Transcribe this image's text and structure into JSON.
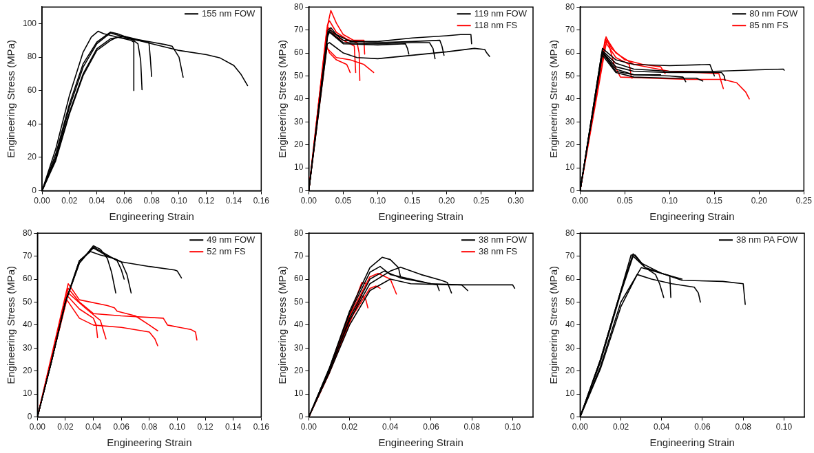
{
  "chart_data": [
    {
      "type": "line",
      "xlabel": "Engineering Strain",
      "ylabel": "Engineering Stress (MPa)",
      "xlim": [
        0,
        0.16
      ],
      "xticks": [
        {
          "value": 0,
          "label": "0.00"
        },
        {
          "value": 0.02,
          "label": "0.02"
        },
        {
          "value": 0.04,
          "label": "0.04"
        },
        {
          "value": 0.06,
          "label": "0.06"
        },
        {
          "value": 0.08,
          "label": "0.08"
        },
        {
          "value": 0.1,
          "label": "0.10"
        },
        {
          "value": 0.12,
          "label": "0.12"
        },
        {
          "value": 0.14,
          "label": "0.14"
        },
        {
          "value": 0.16,
          "label": "0.16"
        }
      ],
      "ylim": [
        0,
        110
      ],
      "yticks": [
        0,
        20,
        40,
        60,
        80,
        100
      ],
      "legend": "top right",
      "marker": "none",
      "line_style": "solid",
      "series": [
        {
          "name": "155 nm FOW",
          "color": "#000000",
          "x": [
            0,
            0.01,
            0.02,
            0.03,
            0.036,
            0.041,
            0.045,
            0.055,
            0.065,
            0.067,
            0.067
          ],
          "values": [
            0,
            25,
            57,
            83,
            92,
            95.5,
            94,
            92,
            90,
            89,
            60
          ]
        },
        {
          "color": "#000000",
          "x": [
            0,
            0.01,
            0.02,
            0.03,
            0.04,
            0.05,
            0.055,
            0.065,
            0.07,
            0.072,
            0.073
          ],
          "values": [
            0,
            22,
            52,
            76,
            89,
            95,
            94,
            91,
            88,
            78,
            60.5
          ]
        },
        {
          "color": "#000000",
          "x": [
            0,
            0.01,
            0.02,
            0.03,
            0.04,
            0.05,
            0.06,
            0.07,
            0.078,
            0.079,
            0.08
          ],
          "values": [
            0,
            20,
            50,
            74,
            88,
            94.5,
            92,
            90,
            89,
            80,
            68.5
          ]
        },
        {
          "color": "#000000",
          "x": [
            0,
            0.01,
            0.02,
            0.03,
            0.04,
            0.05,
            0.06,
            0.07,
            0.08,
            0.09,
            0.095,
            0.1,
            0.103
          ],
          "values": [
            0,
            19,
            47,
            70,
            85,
            91,
            92.5,
            90.5,
            89,
            87.5,
            86.5,
            80,
            68
          ]
        },
        {
          "color": "#000000",
          "x": [
            0,
            0.01,
            0.02,
            0.03,
            0.04,
            0.05,
            0.055,
            0.07,
            0.09,
            0.1,
            0.12,
            0.13,
            0.14,
            0.145,
            0.15
          ],
          "values": [
            0,
            18,
            46,
            69,
            84,
            90,
            92,
            90,
            86,
            84,
            81.5,
            79.5,
            75,
            70,
            63
          ]
        }
      ]
    },
    {
      "type": "line",
      "xlabel": "Engineering Strain",
      "ylabel": "Engineering Stress (MPa)",
      "xlim": [
        0,
        0.325
      ],
      "xticks": [
        {
          "value": 0,
          "label": "0.00"
        },
        {
          "value": 0.05,
          "label": "0.05"
        },
        {
          "value": 0.1,
          "label": "0.10"
        },
        {
          "value": 0.15,
          "label": "0.15"
        },
        {
          "value": 0.2,
          "label": "0.20"
        },
        {
          "value": 0.25,
          "label": "0.25"
        },
        {
          "value": 0.3,
          "label": "0.30"
        }
      ],
      "ylim": [
        0,
        80
      ],
      "yticks": [
        0,
        10,
        20,
        30,
        40,
        50,
        60,
        70,
        80
      ],
      "legend": "top right",
      "marker": "none",
      "line_style": "solid",
      "series": [
        {
          "name": "119 nm FOW",
          "color": "#000000",
          "x": [
            0,
            0.028,
            0.032,
            0.04,
            0.06,
            0.1,
            0.15,
            0.2,
            0.22,
            0.235,
            0.236
          ],
          "values": [
            0,
            70,
            71,
            68,
            65,
            65,
            66.5,
            67.5,
            68,
            68,
            64
          ]
        },
        {
          "color": "#000000",
          "x": [
            0,
            0.028,
            0.031,
            0.05,
            0.1,
            0.15,
            0.19,
            0.193,
            0.196
          ],
          "values": [
            0,
            69,
            70,
            65.5,
            64.5,
            65,
            65.5,
            63,
            59
          ]
        },
        {
          "color": "#000000",
          "x": [
            0,
            0.027,
            0.03,
            0.05,
            0.1,
            0.15,
            0.175,
            0.18,
            0.183
          ],
          "values": [
            0,
            68,
            69.5,
            64.5,
            64,
            64.5,
            64.5,
            62,
            57.5
          ]
        },
        {
          "color": "#000000",
          "x": [
            0,
            0.027,
            0.03,
            0.05,
            0.1,
            0.14,
            0.143,
            0.145
          ],
          "values": [
            0,
            67,
            69,
            64,
            63.5,
            64,
            62,
            59.5
          ]
        },
        {
          "color": "#000000",
          "x": [
            0,
            0.027,
            0.03,
            0.05,
            0.07,
            0.1,
            0.15,
            0.2,
            0.24,
            0.255,
            0.258,
            0.262
          ],
          "values": [
            0,
            64,
            64.5,
            60,
            58,
            57.5,
            59,
            60.5,
            62,
            61.5,
            60,
            58.5
          ]
        },
        {
          "name": "118 nm FS",
          "color": "#ff0000",
          "x": [
            0,
            0.028,
            0.032,
            0.04,
            0.05,
            0.065,
            0.08,
            0.081
          ],
          "values": [
            0,
            73,
            78.5,
            73,
            68,
            65.5,
            65.5,
            59.5
          ]
        },
        {
          "color": "#ff0000",
          "x": [
            0,
            0.027,
            0.03,
            0.04,
            0.055,
            0.07,
            0.073,
            0.074
          ],
          "values": [
            0,
            72,
            74,
            69,
            66,
            64.5,
            60,
            48
          ]
        },
        {
          "color": "#ff0000",
          "x": [
            0,
            0.026,
            0.029,
            0.04,
            0.06,
            0.066,
            0.068
          ],
          "values": [
            0,
            70,
            71,
            67,
            64,
            63,
            51.5
          ]
        },
        {
          "color": "#ff0000",
          "x": [
            0,
            0.026,
            0.03,
            0.04,
            0.06,
            0.08,
            0.094
          ],
          "values": [
            0,
            62,
            61,
            58,
            57,
            55,
            51.5
          ]
        },
        {
          "color": "#ff0000",
          "x": [
            0,
            0.026,
            0.03,
            0.04,
            0.055,
            0.058,
            0.06
          ],
          "values": [
            0,
            63,
            60,
            57,
            55,
            53,
            51.5
          ]
        }
      ]
    },
    {
      "type": "line",
      "xlabel": "Engineering Strain",
      "ylabel": "Engineering Stress (MPa)",
      "xlim": [
        0,
        0.25
      ],
      "xticks": [
        {
          "value": 0,
          "label": "0.00"
        },
        {
          "value": 0.05,
          "label": "0.05"
        },
        {
          "value": 0.1,
          "label": "0.10"
        },
        {
          "value": 0.15,
          "label": "0.15"
        },
        {
          "value": 0.2,
          "label": "0.20"
        },
        {
          "value": 0.25,
          "label": "0.25"
        }
      ],
      "ylim": [
        0,
        80
      ],
      "yticks": [
        0,
        10,
        20,
        30,
        40,
        50,
        60,
        70,
        80
      ],
      "legend": "top right",
      "marker": "none",
      "line_style": "solid",
      "series": [
        {
          "name": "80 nm FOW",
          "color": "#000000",
          "x": [
            0,
            0.025,
            0.04,
            0.06,
            0.1,
            0.145,
            0.148,
            0.15
          ],
          "values": [
            0,
            62,
            57,
            55,
            54.5,
            55,
            52,
            50
          ]
        },
        {
          "color": "#000000",
          "x": [
            0,
            0.025,
            0.04,
            0.06,
            0.1,
            0.15,
            0.2,
            0.227,
            0.228
          ],
          "values": [
            0,
            61,
            55.5,
            53,
            52,
            52,
            52.7,
            53,
            52.5
          ]
        },
        {
          "color": "#000000",
          "x": [
            0,
            0.025,
            0.04,
            0.06,
            0.1,
            0.158,
            0.161,
            0.162
          ],
          "values": [
            0,
            60.5,
            54,
            52,
            51.5,
            51.5,
            50,
            48
          ]
        },
        {
          "color": "#000000",
          "x": [
            0,
            0.025,
            0.04,
            0.06,
            0.1,
            0.115,
            0.118
          ],
          "values": [
            0,
            60,
            53,
            50.5,
            50,
            49.5,
            47.5
          ]
        },
        {
          "color": "#000000",
          "x": [
            0,
            0.024,
            0.04,
            0.06,
            0.1,
            0.13,
            0.137
          ],
          "values": [
            0,
            59.5,
            51.5,
            49.5,
            49,
            49,
            47.8
          ]
        },
        {
          "color": "#000000",
          "x": [
            0,
            0.025,
            0.04,
            0.06,
            0.09
          ],
          "values": [
            0,
            60,
            52,
            50.5,
            50.5
          ]
        },
        {
          "name": "85 nm FS",
          "color": "#ff0000",
          "x": [
            0,
            0.028,
            0.032,
            0.038,
            0.045,
            0.08,
            0.12,
            0.16,
            0.175,
            0.185,
            0.189
          ],
          "values": [
            0,
            66,
            64,
            55,
            49.5,
            49,
            48.5,
            48.5,
            47,
            43,
            40
          ]
        },
        {
          "color": "#ff0000",
          "x": [
            0,
            0.029,
            0.035,
            0.05,
            0.07,
            0.09,
            0.095
          ],
          "values": [
            0,
            67,
            62,
            57,
            55,
            54,
            51
          ]
        },
        {
          "color": "#ff0000",
          "x": [
            0,
            0.03,
            0.04,
            0.06,
            0.1,
            0.13,
            0.155,
            0.158,
            0.16
          ],
          "values": [
            0,
            66,
            60,
            55,
            52,
            51.5,
            51,
            47,
            44.5
          ]
        },
        {
          "color": "#ff0000",
          "x": [
            0,
            0.028,
            0.04,
            0.055,
            0.057,
            0.058
          ],
          "values": [
            0,
            65,
            58,
            55,
            50,
            49
          ]
        }
      ]
    },
    {
      "type": "line",
      "xlabel": "Engineering Strain",
      "ylabel": "Engineering Stress (MPa)",
      "xlim": [
        0,
        0.16
      ],
      "xticks": [
        {
          "value": 0,
          "label": "0.00"
        },
        {
          "value": 0.02,
          "label": "0.02"
        },
        {
          "value": 0.04,
          "label": "0.04"
        },
        {
          "value": 0.06,
          "label": "0.06"
        },
        {
          "value": 0.08,
          "label": "0.08"
        },
        {
          "value": 0.1,
          "label": "0.10"
        },
        {
          "value": 0.12,
          "label": "0.12"
        },
        {
          "value": 0.14,
          "label": "0.14"
        },
        {
          "value": 0.16,
          "label": "0.16"
        }
      ],
      "ylim": [
        0,
        80
      ],
      "yticks": [
        0,
        10,
        20,
        30,
        40,
        50,
        60,
        70,
        80
      ],
      "legend": "top right",
      "marker": "none",
      "line_style": "solid",
      "series": [
        {
          "name": "49 nm FOW",
          "color": "#000000",
          "x": [
            0,
            0.01,
            0.02,
            0.03,
            0.04,
            0.045,
            0.05,
            0.053,
            0.056
          ],
          "values": [
            0,
            24,
            50,
            67,
            74.5,
            73,
            69,
            63,
            54
          ]
        },
        {
          "color": "#000000",
          "x": [
            0,
            0.01,
            0.02,
            0.03,
            0.04,
            0.05,
            0.057,
            0.06,
            0.062
          ],
          "values": [
            0,
            24,
            50,
            67,
            74,
            70.5,
            68,
            64,
            60
          ]
        },
        {
          "color": "#000000",
          "x": [
            0,
            0.01,
            0.02,
            0.03,
            0.038,
            0.045,
            0.055,
            0.06,
            0.064,
            0.067
          ],
          "values": [
            0,
            24,
            50,
            68,
            72,
            70.5,
            69,
            67.5,
            62,
            54
          ]
        },
        {
          "color": "#000000",
          "x": [
            0,
            0.01,
            0.02,
            0.03,
            0.04,
            0.05,
            0.06,
            0.08,
            0.098,
            0.1,
            0.103
          ],
          "values": [
            0,
            24,
            50,
            68,
            73.5,
            70,
            67.5,
            65.5,
            64,
            63.5,
            60.5
          ]
        },
        {
          "name": "52 nm FS",
          "color": "#ff0000",
          "x": [
            0,
            0.022,
            0.03,
            0.05,
            0.055,
            0.057,
            0.07,
            0.08,
            0.086
          ],
          "values": [
            0,
            58,
            51,
            48.5,
            47.5,
            46,
            44,
            40,
            37.5
          ]
        },
        {
          "color": "#ff0000",
          "x": [
            0,
            0.022,
            0.03,
            0.04,
            0.06,
            0.09,
            0.093,
            0.11,
            0.113,
            0.114
          ],
          "values": [
            0,
            56,
            50,
            45,
            44,
            43,
            40,
            38,
            37,
            33.5
          ]
        },
        {
          "color": "#ff0000",
          "x": [
            0,
            0.021,
            0.03,
            0.04,
            0.042,
            0.043
          ],
          "values": [
            0,
            53,
            47,
            43,
            40,
            34.5
          ]
        },
        {
          "color": "#ff0000",
          "x": [
            0,
            0.022,
            0.035,
            0.045,
            0.049
          ],
          "values": [
            0,
            54,
            47,
            42,
            34
          ]
        },
        {
          "color": "#ff0000",
          "x": [
            0,
            0.021,
            0.03,
            0.04,
            0.06,
            0.08,
            0.084,
            0.086
          ],
          "values": [
            0,
            51,
            43,
            40,
            39,
            37,
            34,
            31
          ]
        }
      ]
    },
    {
      "type": "line",
      "xlabel": "Engineering Strain",
      "ylabel": "Engineering Stress (MPa)",
      "xlim": [
        0,
        0.11
      ],
      "xticks": [
        {
          "value": 0,
          "label": "0.00"
        },
        {
          "value": 0.02,
          "label": "0.02"
        },
        {
          "value": 0.04,
          "label": "0.04"
        },
        {
          "value": 0.06,
          "label": "0.06"
        },
        {
          "value": 0.08,
          "label": "0.08"
        },
        {
          "value": 0.1,
          "label": "0.10"
        }
      ],
      "ylim": [
        0,
        80
      ],
      "yticks": [
        0,
        10,
        20,
        30,
        40,
        50,
        60,
        70,
        80
      ],
      "legend": "top right",
      "marker": "none",
      "line_style": "solid",
      "series": [
        {
          "name": "38 nm FOW",
          "color": "#000000",
          "x": [
            0,
            0.01,
            0.02,
            0.03,
            0.036,
            0.04,
            0.044,
            0.045
          ],
          "values": [
            0,
            21,
            46,
            65,
            69.5,
            68.5,
            65,
            61
          ]
        },
        {
          "color": "#000000",
          "x": [
            0,
            0.01,
            0.02,
            0.03,
            0.035,
            0.04,
            0.05,
            0.06,
            0.063,
            0.064
          ],
          "values": [
            0,
            21,
            45,
            63,
            65.5,
            62,
            60,
            58,
            57.5,
            55
          ]
        },
        {
          "color": "#000000",
          "x": [
            0,
            0.01,
            0.02,
            0.03,
            0.04,
            0.045,
            0.055,
            0.065,
            0.068,
            0.07
          ],
          "values": [
            0,
            20,
            42,
            58,
            63.5,
            65.2,
            62,
            59.5,
            58.5,
            54
          ]
        },
        {
          "color": "#000000",
          "x": [
            0,
            0.01,
            0.02,
            0.03,
            0.037,
            0.045,
            0.06,
            0.075,
            0.078
          ],
          "values": [
            0,
            20,
            43,
            60,
            63.5,
            60.5,
            58,
            57.5,
            55
          ]
        },
        {
          "color": "#000000",
          "x": [
            0,
            0.01,
            0.02,
            0.03,
            0.04,
            0.05,
            0.07,
            0.1,
            0.101
          ],
          "values": [
            0,
            19,
            40,
            55,
            60,
            58,
            57.5,
            57.5,
            56
          ]
        },
        {
          "name": "38 nm FS",
          "color": "#ff0000",
          "x": [
            0,
            0.01,
            0.02,
            0.026,
            0.028
          ],
          "values": [
            0,
            20,
            44,
            58.5,
            58
          ]
        },
        {
          "color": "#ff0000",
          "x": [
            0,
            0.01,
            0.02,
            0.026,
            0.028,
            0.029
          ],
          "values": [
            0,
            19,
            41,
            53,
            51,
            47.5
          ]
        },
        {
          "color": "#ff0000",
          "x": [
            0,
            0.01,
            0.02,
            0.03,
            0.033,
            0.035
          ],
          "values": [
            0,
            19,
            42,
            56,
            57,
            56
          ]
        },
        {
          "color": "#ff0000",
          "x": [
            0,
            0.01,
            0.02,
            0.03,
            0.034,
            0.04,
            0.043
          ],
          "values": [
            0,
            20,
            44,
            61,
            62.5,
            60,
            53.5
          ]
        }
      ]
    },
    {
      "type": "line",
      "xlabel": "Engineering Strain",
      "ylabel": "Engineering Stress (MPa)",
      "xlim": [
        0,
        0.11
      ],
      "xticks": [
        {
          "value": 0,
          "label": "0.00"
        },
        {
          "value": 0.02,
          "label": "0.02"
        },
        {
          "value": 0.04,
          "label": "0.04"
        },
        {
          "value": 0.06,
          "label": "0.06"
        },
        {
          "value": 0.08,
          "label": "0.08"
        },
        {
          "value": 0.1,
          "label": "0.10"
        }
      ],
      "ylim": [
        0,
        80
      ],
      "yticks": [
        0,
        10,
        20,
        30,
        40,
        50,
        60,
        70,
        80
      ],
      "legend": "top right",
      "marker": "none",
      "line_style": "solid",
      "series": [
        {
          "name": "38 nm PA FOW",
          "color": "#000000",
          "x": [
            0,
            0.01,
            0.02,
            0.025,
            0.027,
            0.032,
            0.037,
            0.039,
            0.041
          ],
          "values": [
            0,
            25,
            55,
            70.5,
            70.5,
            65,
            62,
            58,
            52
          ]
        },
        {
          "color": "#000000",
          "x": [
            0,
            0.01,
            0.02,
            0.026,
            0.03,
            0.04,
            0.044,
            0.0445
          ],
          "values": [
            0,
            25,
            55,
            71,
            67,
            62.5,
            61.5,
            52
          ]
        },
        {
          "color": "#000000",
          "x": [
            0,
            0.01,
            0.02,
            0.026,
            0.032,
            0.045,
            0.05,
            0.07,
            0.08,
            0.081
          ],
          "values": [
            0,
            24,
            54,
            70,
            65,
            61,
            59.5,
            59,
            58,
            49
          ]
        },
        {
          "color": "#000000",
          "x": [
            0,
            0.01,
            0.02,
            0.03,
            0.04,
            0.05
          ],
          "values": [
            0,
            22,
            50,
            65,
            62.5,
            60
          ]
        },
        {
          "color": "#000000",
          "x": [
            0,
            0.01,
            0.02,
            0.028,
            0.035,
            0.045,
            0.056,
            0.058,
            0.059
          ],
          "values": [
            0,
            21,
            48,
            62,
            60,
            58,
            56.5,
            54,
            50
          ]
        }
      ]
    }
  ]
}
